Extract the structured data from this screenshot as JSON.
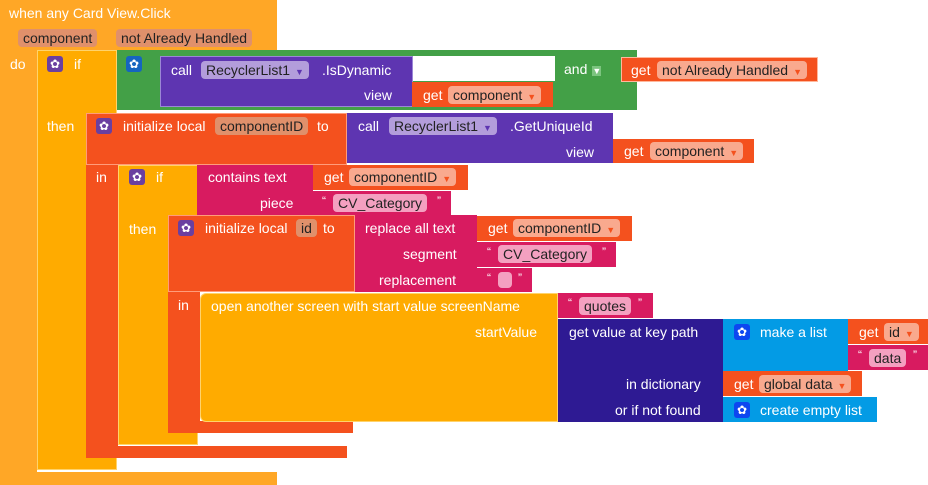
{
  "event": {
    "title": "when any Card View.Click",
    "params": [
      "component",
      "not Already Handled"
    ],
    "do_label": "do"
  },
  "if1": {
    "if_label": "if",
    "then_label": "then"
  },
  "and_block": {
    "label": "and"
  },
  "isdynamic": {
    "call": "call",
    "component": "RecyclerList1",
    "method": ".IsDynamic",
    "arg_label": "view",
    "arg_get": "get",
    "arg_var": "component"
  },
  "get_handled": {
    "get": "get",
    "var": "not Already Handled"
  },
  "init1": {
    "label": "initialize local",
    "var": "componentID",
    "to": "to",
    "in_label": "in"
  },
  "uniqueid": {
    "call": "call",
    "component": "RecyclerList1",
    "method": ".GetUniqueId",
    "arg_label": "view",
    "arg_get": "get",
    "arg_var": "component"
  },
  "if2": {
    "if_label": "if",
    "then_label": "then"
  },
  "contains": {
    "label": "contains  text",
    "piece_label": "piece",
    "get": "get",
    "var": "componentID",
    "piece_value": "CV_Category"
  },
  "init2": {
    "label": "initialize local",
    "var": "id",
    "to": "to",
    "in_label": "in"
  },
  "replace": {
    "label": "replace all text",
    "segment_label": "segment",
    "replacement_label": "replacement",
    "get": "get",
    "var": "componentID",
    "segment_value": "CV_Category",
    "replacement_value": ""
  },
  "open_screen": {
    "label": "open another screen with start value  screenName",
    "start_label": "startValue",
    "screen_value": "quotes"
  },
  "keypath": {
    "label": "get value at key path",
    "dict_label": "in dictionary",
    "notfound_label": "or if not found"
  },
  "make_list": {
    "label": "make a list",
    "get": "get",
    "var": "id",
    "item2": "data"
  },
  "global_get": {
    "get": "get",
    "var": "global data"
  },
  "empty_list": {
    "label": "create empty list"
  },
  "quote_open": "“",
  "quote_close": "”",
  "dropdown_arrow": "▼",
  "gear_glyph": "✿"
}
